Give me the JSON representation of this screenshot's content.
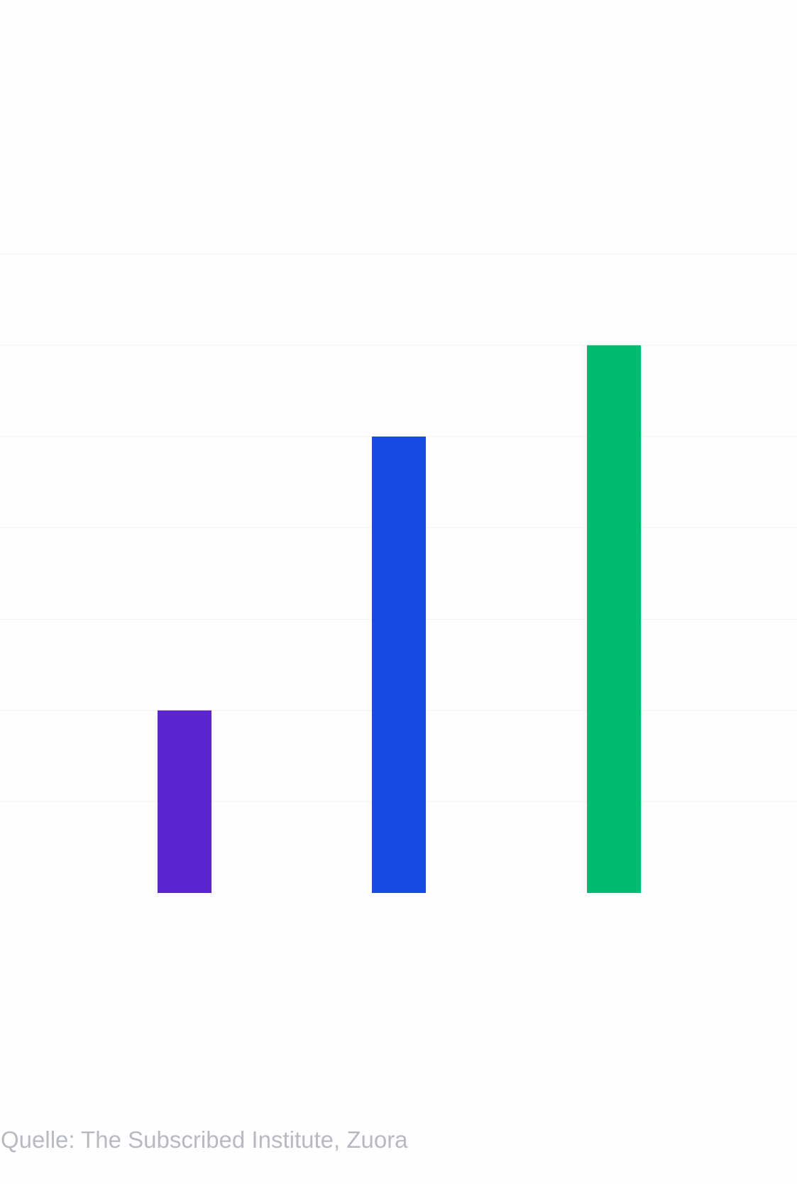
{
  "chart_data": {
    "type": "bar",
    "categories": [
      "",
      "",
      ""
    ],
    "values": [
      2,
      5,
      6
    ],
    "colors": [
      "#5b25d0",
      "#164ae3",
      "#00bc70"
    ],
    "ylim": [
      0,
      7
    ],
    "grid": true,
    "gridline_color": "#f7f5f1",
    "title": "",
    "xlabel": "",
    "ylabel": ""
  },
  "source": {
    "text": "Quelle: The Subscribed Institute, Zuora"
  }
}
